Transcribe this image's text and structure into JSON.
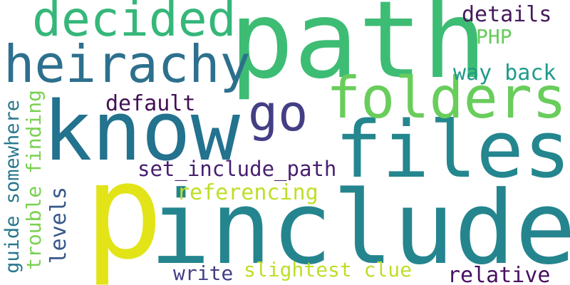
{
  "words": {
    "path": {
      "text": "path",
      "color": "#3dbc74"
    },
    "include": {
      "text": "include",
      "color": "#25858e"
    },
    "p": {
      "text": "p",
      "color": "#e2e418"
    },
    "know": {
      "text": "know",
      "color": "#23728e"
    },
    "files": {
      "text": "files",
      "color": "#24868e"
    },
    "folders": {
      "text": "folders",
      "color": "#69cd5b"
    },
    "heirachy": {
      "text": "heirachy",
      "color": "#2d708e"
    },
    "decided": {
      "text": "decided",
      "color": "#35b779"
    },
    "go": {
      "text": "go",
      "color": "#433e85"
    },
    "details": {
      "text": "details",
      "color": "#46195b"
    },
    "php": {
      "text": "PHP",
      "color": "#67cc5c"
    },
    "way_back": {
      "text": "way back",
      "color": "#1f9a8a"
    },
    "default": {
      "text": "default",
      "color": "#440f55"
    },
    "set_include_path": {
      "text": "set_include_path",
      "color": "#481f70"
    },
    "referencing": {
      "text": "referencing",
      "color": "#bddf26"
    },
    "write": {
      "text": "write",
      "color": "#433e85"
    },
    "slightest_clue": {
      "text": "slightest clue",
      "color": "#bddf26"
    },
    "relative": {
      "text": "relative",
      "color": "#471063"
    },
    "levels": {
      "text": "levels",
      "color": "#38588c"
    },
    "trouble_finding": {
      "text": "trouble finding",
      "color": "#7ad151"
    },
    "guide_somewhere": {
      "text": "guide somewhere",
      "color": "#2a788e"
    }
  }
}
